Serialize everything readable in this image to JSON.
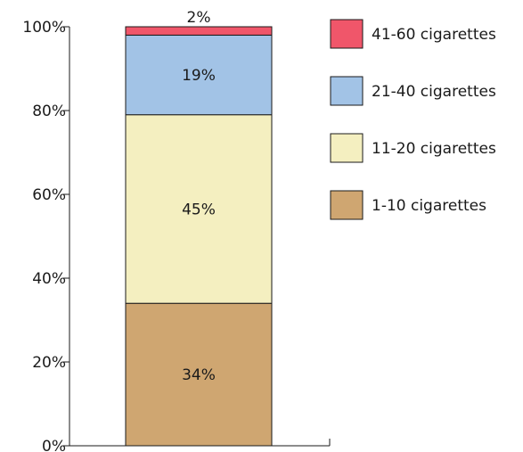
{
  "chart_data": {
    "type": "bar",
    "stacked": true,
    "categories": [
      ""
    ],
    "series": [
      {
        "name": "1-10 cigarettes",
        "values": [
          34
        ],
        "label": "34%",
        "color": "#cfa671"
      },
      {
        "name": "11-20 cigarettes",
        "values": [
          45
        ],
        "label": "45%",
        "color": "#f4efc0"
      },
      {
        "name": "21-40 cigarettes",
        "values": [
          19
        ],
        "label": "19%",
        "color": "#a2c3e6"
      },
      {
        "name": "41-60 cigarettes",
        "values": [
          2
        ],
        "label": "2%",
        "color": "#f0566a"
      }
    ],
    "yticks": [
      "0%",
      "20%",
      "40%",
      "60%",
      "80%",
      "100%"
    ],
    "ylim": [
      0,
      100
    ],
    "legend_position": "right",
    "grid": false,
    "title": "",
    "xlabel": "",
    "ylabel": ""
  }
}
